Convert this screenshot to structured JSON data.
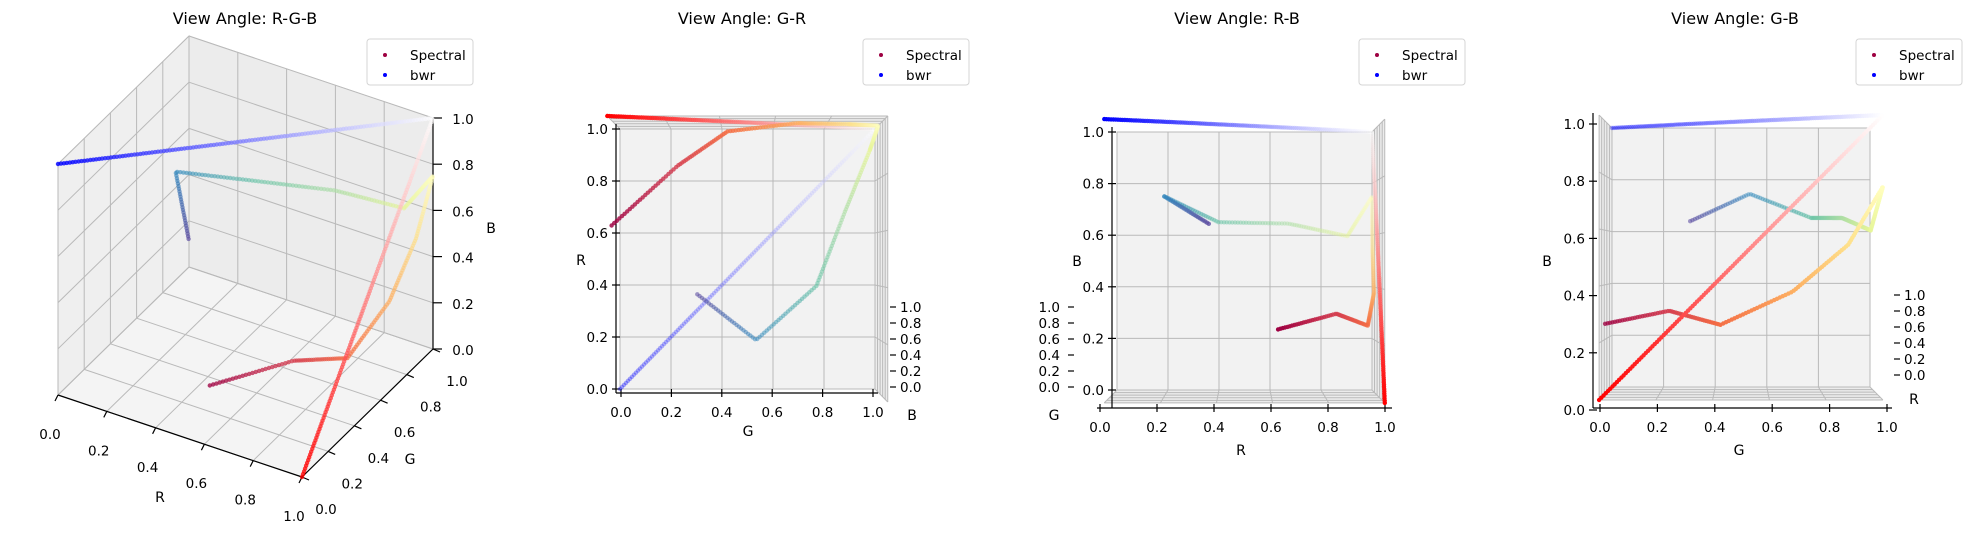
{
  "legend": {
    "entries": [
      {
        "label": "Spectral",
        "color": "#9e0142"
      },
      {
        "label": "bwr",
        "color": "#0000ff"
      }
    ]
  },
  "chart_data": [
    {
      "type": "scatter3d",
      "title": "View Angle: R-G-B",
      "xlabel": "R",
      "ylabel": "G",
      "zlabel": "B",
      "xlim": [
        0,
        1
      ],
      "ylim": [
        0,
        1
      ],
      "zlim": [
        0,
        1
      ],
      "ticks": [
        "0.0",
        "0.2",
        "0.4",
        "0.6",
        "0.8",
        "1.0"
      ],
      "grid": true,
      "legend_position": "top-right",
      "series": [
        {
          "name": "Spectral",
          "colormap_rgb_stops": [
            [
              0.62,
              0.004,
              0.259
            ],
            [
              0.835,
              0.243,
              0.31
            ],
            [
              0.957,
              0.427,
              0.263
            ],
            [
              0.992,
              0.682,
              0.38
            ],
            [
              0.996,
              0.878,
              0.545
            ],
            [
              1.0,
              1.0,
              0.749
            ],
            [
              0.902,
              0.961,
              0.596
            ],
            [
              0.671,
              0.867,
              0.643
            ],
            [
              0.4,
              0.761,
              0.647
            ],
            [
              0.196,
              0.533,
              0.741
            ],
            [
              0.369,
              0.31,
              0.635
            ]
          ]
        },
        {
          "name": "bwr",
          "colormap_rgb_stops": [
            [
              0,
              0,
              1
            ],
            [
              1,
              1,
              1
            ],
            [
              1,
              0,
              0
            ]
          ]
        }
      ]
    },
    {
      "type": "scatter3d",
      "title": "View Angle: G-R",
      "xlabel": "G",
      "ylabel": "R",
      "zlabel": "B",
      "xlim": [
        0,
        1
      ],
      "ylim": [
        0,
        1
      ],
      "zlim": [
        0,
        1
      ],
      "ticks": [
        "0.0",
        "0.2",
        "0.4",
        "0.6",
        "0.8",
        "1.0"
      ],
      "grid": true,
      "legend_position": "top-right",
      "series": [
        {
          "name": "Spectral",
          "colormap_rgb_stops": [
            [
              0.62,
              0.004,
              0.259
            ],
            [
              0.835,
              0.243,
              0.31
            ],
            [
              0.957,
              0.427,
              0.263
            ],
            [
              0.992,
              0.682,
              0.38
            ],
            [
              0.996,
              0.878,
              0.545
            ],
            [
              1.0,
              1.0,
              0.749
            ],
            [
              0.902,
              0.961,
              0.596
            ],
            [
              0.671,
              0.867,
              0.643
            ],
            [
              0.4,
              0.761,
              0.647
            ],
            [
              0.196,
              0.533,
              0.741
            ],
            [
              0.369,
              0.31,
              0.635
            ]
          ]
        },
        {
          "name": "bwr",
          "colormap_rgb_stops": [
            [
              0,
              0,
              1
            ],
            [
              1,
              1,
              1
            ],
            [
              1,
              0,
              0
            ]
          ]
        }
      ]
    },
    {
      "type": "scatter3d",
      "title": "View Angle: R-B",
      "xlabel": "R",
      "ylabel": "B",
      "zlabel": "G",
      "xlim": [
        0,
        1
      ],
      "ylim": [
        0,
        1
      ],
      "zlim": [
        0,
        1
      ],
      "ticks": [
        "0.0",
        "0.2",
        "0.4",
        "0.6",
        "0.8",
        "1.0"
      ],
      "grid": true,
      "legend_position": "top-right",
      "series": [
        {
          "name": "Spectral",
          "colormap_rgb_stops": [
            [
              0.62,
              0.004,
              0.259
            ],
            [
              0.835,
              0.243,
              0.31
            ],
            [
              0.957,
              0.427,
              0.263
            ],
            [
              0.992,
              0.682,
              0.38
            ],
            [
              0.996,
              0.878,
              0.545
            ],
            [
              1.0,
              1.0,
              0.749
            ],
            [
              0.902,
              0.961,
              0.596
            ],
            [
              0.671,
              0.867,
              0.643
            ],
            [
              0.4,
              0.761,
              0.647
            ],
            [
              0.196,
              0.533,
              0.741
            ],
            [
              0.369,
              0.31,
              0.635
            ]
          ]
        },
        {
          "name": "bwr",
          "colormap_rgb_stops": [
            [
              0,
              0,
              1
            ],
            [
              1,
              1,
              1
            ],
            [
              1,
              0,
              0
            ]
          ]
        }
      ]
    },
    {
      "type": "scatter3d",
      "title": "View Angle: G-B",
      "xlabel": "G",
      "ylabel": "B",
      "zlabel": "R",
      "xlim": [
        0,
        1
      ],
      "ylim": [
        0,
        1
      ],
      "zlim": [
        0,
        1
      ],
      "ticks": [
        "0.0",
        "0.2",
        "0.4",
        "0.6",
        "0.8",
        "1.0"
      ],
      "grid": true,
      "legend_position": "top-right",
      "series": [
        {
          "name": "Spectral",
          "colormap_rgb_stops": [
            [
              0.62,
              0.004,
              0.259
            ],
            [
              0.835,
              0.243,
              0.31
            ],
            [
              0.957,
              0.427,
              0.263
            ],
            [
              0.992,
              0.682,
              0.38
            ],
            [
              0.996,
              0.878,
              0.545
            ],
            [
              1.0,
              1.0,
              0.749
            ],
            [
              0.902,
              0.961,
              0.596
            ],
            [
              0.671,
              0.867,
              0.643
            ],
            [
              0.4,
              0.761,
              0.647
            ],
            [
              0.196,
              0.533,
              0.741
            ],
            [
              0.369,
              0.31,
              0.635
            ]
          ]
        },
        {
          "name": "bwr",
          "colormap_rgb_stops": [
            [
              0,
              0,
              1
            ],
            [
              1,
              1,
              1
            ],
            [
              1,
              0,
              0
            ]
          ]
        }
      ]
    }
  ]
}
